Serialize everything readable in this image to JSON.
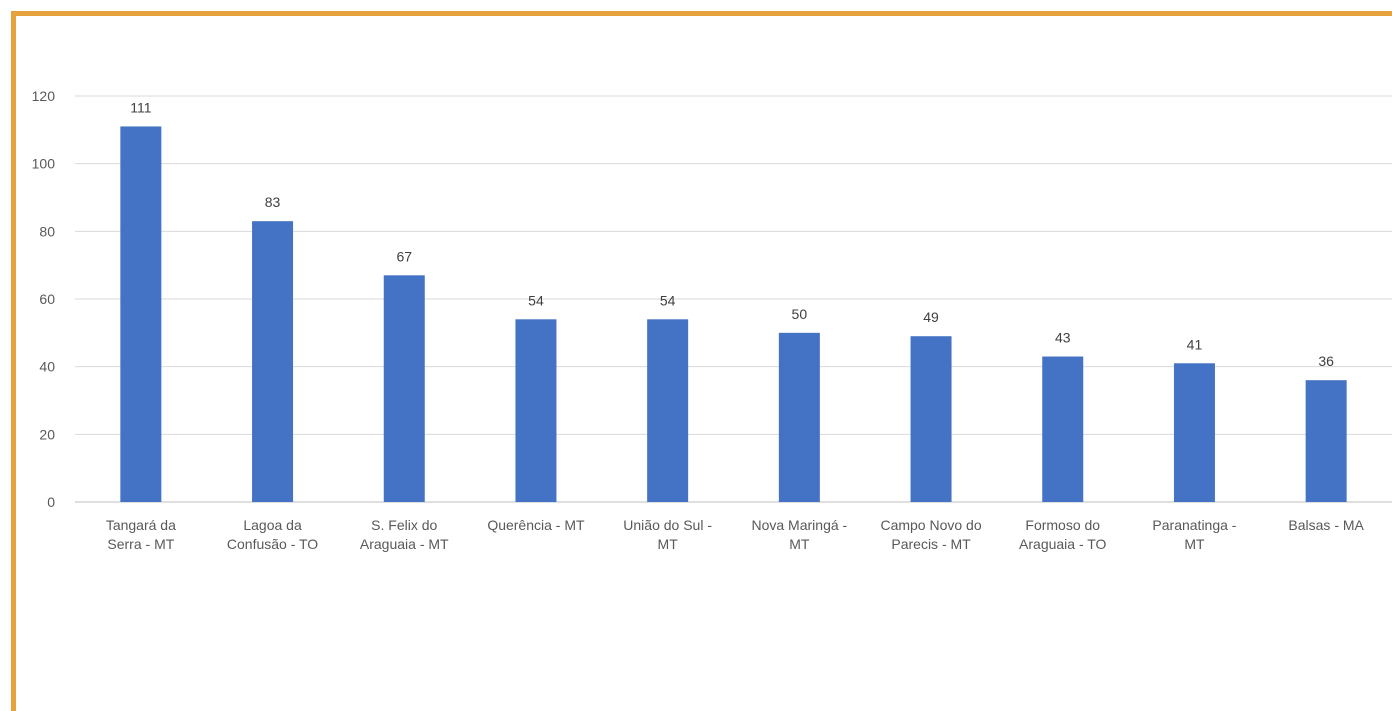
{
  "chart_data": {
    "type": "bar",
    "categories": [
      [
        "Tangará da",
        "Serra - MT"
      ],
      [
        "Lagoa da",
        "Confusão - TO"
      ],
      [
        "S. Felix do",
        "Araguaia - MT"
      ],
      [
        "Querência - MT"
      ],
      [
        "União do Sul -",
        "MT"
      ],
      [
        "Nova Maringá -",
        "MT"
      ],
      [
        "Campo Novo do",
        "Parecis - MT"
      ],
      [
        "Formoso do",
        "Araguaia - TO"
      ],
      [
        "Paranatinga -",
        "MT"
      ],
      [
        "Balsas - MA"
      ]
    ],
    "values": [
      111,
      83,
      67,
      54,
      54,
      50,
      49,
      43,
      41,
      36
    ],
    "ylim": [
      0,
      120
    ],
    "yticks": [
      "0",
      "20",
      "40",
      "60",
      "80",
      "100",
      "120"
    ],
    "grid": true,
    "bar_color": "#4472c4",
    "frame_color": "#e6a23c"
  }
}
